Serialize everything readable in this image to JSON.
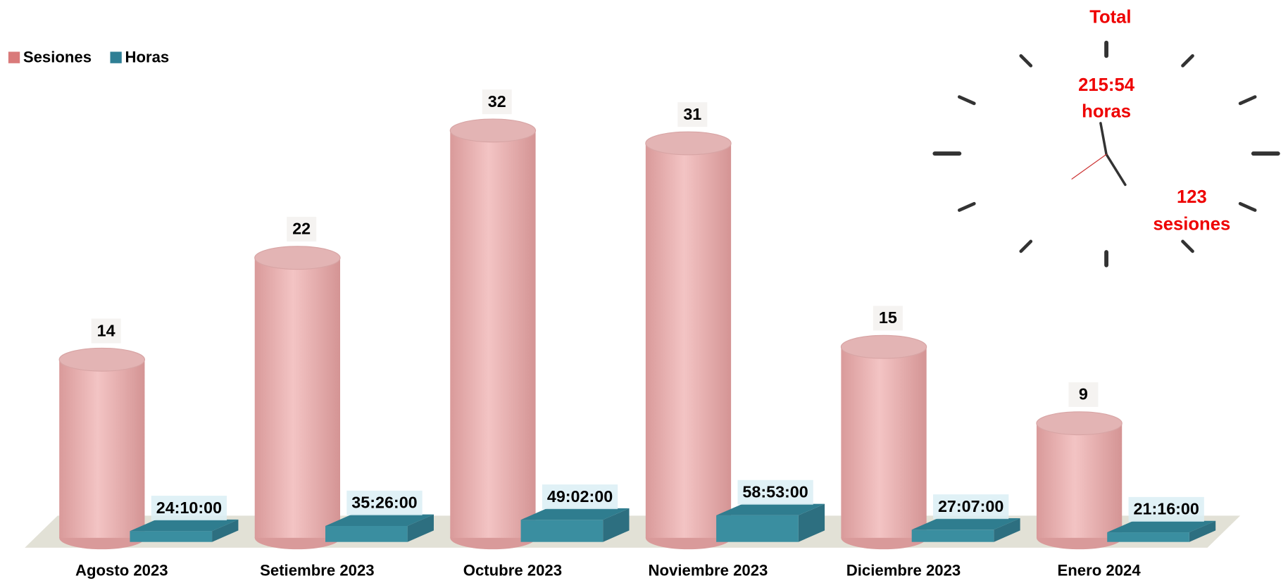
{
  "chart_data": {
    "type": "bar3d",
    "categories": [
      "Agosto 2023",
      "Setiembre 2023",
      "Octubre 2023",
      "Noviembre 2023",
      "Diciembre 2023",
      "Enero 2024"
    ],
    "series": [
      {
        "name": "Sesiones",
        "color": "#e8b0b0",
        "values": [
          14,
          22,
          32,
          31,
          15,
          9
        ]
      },
      {
        "name": "Horas",
        "color": "#3a8ea0",
        "values": [
          24.16667,
          35.43333,
          49.03333,
          58.88333,
          27.11667,
          21.26667
        ],
        "value_labels": [
          "24:10:00",
          "35:26:00",
          "49:02:00",
          "58:53:00",
          "27:07:00",
          "21:16:00"
        ]
      }
    ],
    "annotations": {
      "title": "Total",
      "hours": "215:54",
      "hours_label": "horas",
      "sessions": "123",
      "sessions_label": "sesiones"
    }
  }
}
